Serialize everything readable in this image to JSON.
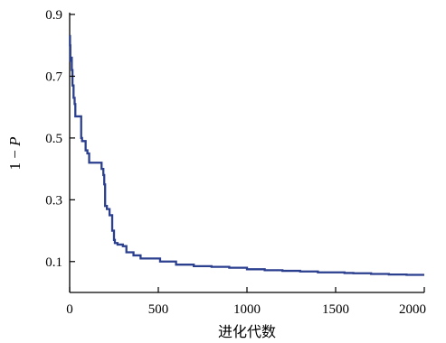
{
  "chart_data": {
    "type": "line",
    "title": "",
    "xlabel": "进化代数",
    "ylabel": {
      "prefix": "1 − ",
      "var": "P"
    },
    "xlim": [
      0,
      2000
    ],
    "ylim": [
      0.0,
      0.9
    ],
    "xticks": [
      0,
      500,
      1000,
      1500,
      2000
    ],
    "xtick_labels": [
      "0",
      "500",
      "1000",
      "1500",
      "2000"
    ],
    "yticks": [
      0.1,
      0.3,
      0.5,
      0.7,
      0.9
    ],
    "ytick_labels": [
      "0.1",
      "0.3",
      "0.5",
      "0.7",
      "0.9"
    ],
    "grid": false,
    "line_color": "#2b3f8f",
    "series": [
      {
        "step": true,
        "x": [
          0,
          2,
          4,
          8,
          12,
          16,
          22,
          28,
          32,
          60,
          65,
          70,
          90,
          100,
          110,
          140,
          165,
          180,
          190,
          195,
          200,
          210,
          225,
          240,
          250,
          255,
          270,
          300,
          320,
          335,
          360,
          400,
          460,
          510,
          580,
          600,
          700,
          800,
          900,
          1000,
          1100,
          1200,
          1300,
          1400,
          1500,
          1550,
          1600,
          1700,
          1800,
          1900,
          2000
        ],
        "y": [
          0.83,
          0.8,
          0.75,
          0.76,
          0.72,
          0.67,
          0.63,
          0.61,
          0.57,
          0.57,
          0.5,
          0.49,
          0.46,
          0.45,
          0.42,
          0.42,
          0.42,
          0.4,
          0.38,
          0.35,
          0.28,
          0.27,
          0.25,
          0.2,
          0.17,
          0.16,
          0.155,
          0.15,
          0.13,
          0.13,
          0.12,
          0.11,
          0.11,
          0.1,
          0.1,
          0.09,
          0.085,
          0.083,
          0.08,
          0.075,
          0.072,
          0.07,
          0.068,
          0.065,
          0.065,
          0.063,
          0.062,
          0.06,
          0.058,
          0.057,
          0.057
        ]
      }
    ]
  }
}
